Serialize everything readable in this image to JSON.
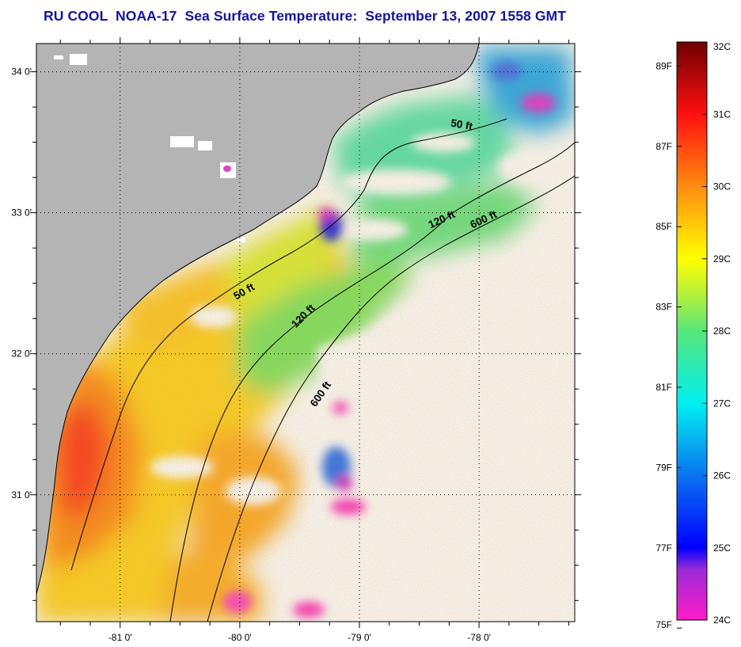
{
  "title": "RU COOL  NOAA-17  Sea Surface Temperature:  September 13, 2007 1558 GMT",
  "map": {
    "lon_range": [
      -81.7,
      -77.2
    ],
    "lat_range": [
      30.1,
      34.2
    ],
    "lon_ticks": [
      {
        "value": -81,
        "label": "-81 0'"
      },
      {
        "value": -80,
        "label": "-80 0'"
      },
      {
        "value": -79,
        "label": "-79 0'"
      },
      {
        "value": -78,
        "label": "-78 0'"
      }
    ],
    "lat_ticks": [
      {
        "value": 34,
        "label": "34 0'"
      },
      {
        "value": 33,
        "label": "33 0'"
      },
      {
        "value": 32,
        "label": "32 0'"
      },
      {
        "value": 31,
        "label": "31 0'"
      }
    ],
    "grid": "dotted",
    "contour_labels": [
      {
        "text": "50 ft",
        "lon": -78.15,
        "lat": 33.6,
        "angle": 10
      },
      {
        "text": "120 ft",
        "lon": -78.3,
        "lat": 32.93,
        "angle": -25
      },
      {
        "text": "600 ft",
        "lon": -77.95,
        "lat": 32.93,
        "angle": -25
      },
      {
        "text": "50 ft",
        "lon": -79.95,
        "lat": 32.42,
        "angle": -30
      },
      {
        "text": "120 ft",
        "lon": -79.45,
        "lat": 32.25,
        "angle": -45
      },
      {
        "text": "600 ft",
        "lon": -79.3,
        "lat": 31.7,
        "angle": -55
      }
    ],
    "land_color": "#b4b4b4",
    "no_data_color": "#ffffff"
  },
  "colorbar": {
    "celsius": [
      {
        "value": 32,
        "label": "32C"
      },
      {
        "value": 31,
        "label": "31C"
      },
      {
        "value": 30,
        "label": "30C"
      },
      {
        "value": 29,
        "label": "29C"
      },
      {
        "value": 28,
        "label": "28C"
      },
      {
        "value": 27,
        "label": "27C"
      },
      {
        "value": 26,
        "label": "26C"
      },
      {
        "value": 25,
        "label": "25C"
      },
      {
        "value": 24,
        "label": "24C"
      }
    ],
    "fahrenheit": [
      {
        "value": 89,
        "label": "89F"
      },
      {
        "value": 87,
        "label": "87F"
      },
      {
        "value": 85,
        "label": "85F"
      },
      {
        "value": 83,
        "label": "83F"
      },
      {
        "value": 81,
        "label": "81F"
      },
      {
        "value": 79,
        "label": "79F"
      },
      {
        "value": 77,
        "label": "77F"
      },
      {
        "value": 75,
        "label": "75F"
      }
    ],
    "range_c": [
      24,
      32
    ],
    "stops": [
      {
        "value": 24,
        "color": "#ff1ec8"
      },
      {
        "value": 24.7,
        "color": "#9a2ad8"
      },
      {
        "value": 25,
        "color": "#0000ff"
      },
      {
        "value": 26,
        "color": "#0a74f0"
      },
      {
        "value": 27,
        "color": "#00f0f0"
      },
      {
        "value": 28,
        "color": "#56e67a"
      },
      {
        "value": 28.5,
        "color": "#b4f03c"
      },
      {
        "value": 29,
        "color": "#ffff00"
      },
      {
        "value": 30,
        "color": "#ff8c10"
      },
      {
        "value": 31,
        "color": "#ff1010"
      },
      {
        "value": 32,
        "color": "#6e0000"
      }
    ]
  }
}
